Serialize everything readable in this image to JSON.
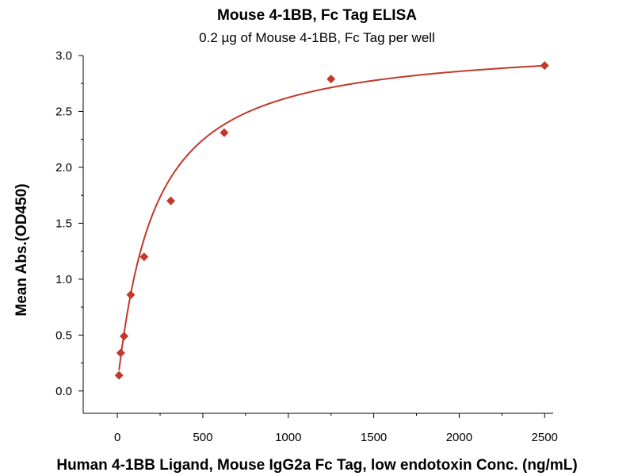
{
  "chart_data": {
    "type": "scatter",
    "title": "Mouse 4-1BB, Fc Tag ELISA",
    "subtitle": "0.2 µg of Mouse 4-1BB, Fc Tag per well",
    "xlabel": "Human 4-1BB Ligand, Mouse IgG2a Fc Tag, low endotoxin Conc. (ng/mL)",
    "ylabel": "Mean Abs.(OD450)",
    "xlim": [
      -200,
      2550
    ],
    "ylim": [
      -0.2,
      3.0
    ],
    "x_ticks": [
      0,
      500,
      1000,
      1500,
      2000,
      2500
    ],
    "x_tick_labels": [
      "0",
      "500",
      "1000",
      "1500",
      "2000",
      "2500"
    ],
    "y_ticks": [
      0.0,
      0.5,
      1.0,
      1.5,
      2.0,
      2.5,
      3.0
    ],
    "y_tick_labels": [
      "0.0",
      "0.5",
      "1.0",
      "1.5",
      "2.0",
      "2.5",
      "3.0"
    ],
    "grid": false,
    "series": [
      {
        "name": "Mean Abs.(OD450)",
        "marker": "diamond",
        "color": "#c0392b",
        "x": [
          9.77,
          19.53,
          39.06,
          78.13,
          156.25,
          312.5,
          625,
          1250,
          2500
        ],
        "y": [
          0.14,
          0.34,
          0.49,
          0.86,
          1.2,
          1.7,
          2.31,
          2.79,
          2.91
        ]
      }
    ],
    "fit": {
      "model": "saturation",
      "color": "#c0392b",
      "bmax": 3.12,
      "kd": 210,
      "hill": 1.05,
      "baseline": 0.07
    }
  }
}
